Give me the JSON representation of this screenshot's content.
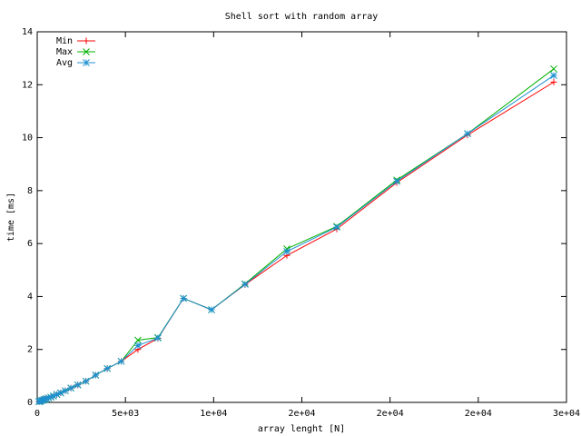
{
  "chart_data": {
    "type": "line",
    "title": "Shell sort with random array",
    "xlabel": "array lenght [N]",
    "ylabel": "time [ms]",
    "x": [
      100,
      150,
      220,
      300,
      370,
      450,
      530,
      640,
      770,
      920,
      1110,
      1330,
      1590,
      1910,
      2300,
      2760,
      3310,
      3970,
      4760,
      5710,
      6840,
      8290,
      9880,
      11780,
      14150,
      16980,
      20380,
      24390,
      29280
    ],
    "series": [
      {
        "name": "Min",
        "color": "#ff0000",
        "marker": "plus",
        "values": [
          0.03,
          0.04,
          0.06,
          0.08,
          0.1,
          0.12,
          0.14,
          0.17,
          0.2,
          0.24,
          0.3,
          0.36,
          0.44,
          0.54,
          0.66,
          0.8,
          1.03,
          1.28,
          1.55,
          2.0,
          2.42,
          3.93,
          3.5,
          4.45,
          5.55,
          6.55,
          8.3,
          10.1,
          12.1
        ]
      },
      {
        "name": "Max",
        "color": "#00b000",
        "marker": "cross",
        "values": [
          0.03,
          0.04,
          0.06,
          0.08,
          0.1,
          0.12,
          0.14,
          0.17,
          0.2,
          0.24,
          0.3,
          0.36,
          0.44,
          0.54,
          0.66,
          0.8,
          1.03,
          1.28,
          1.55,
          2.35,
          2.45,
          3.93,
          3.5,
          4.48,
          5.8,
          6.65,
          8.4,
          10.15,
          12.6
        ]
      },
      {
        "name": "Avg",
        "color": "#1e90d0",
        "marker": "star",
        "values": [
          0.03,
          0.04,
          0.06,
          0.08,
          0.1,
          0.12,
          0.14,
          0.17,
          0.2,
          0.24,
          0.3,
          0.36,
          0.44,
          0.54,
          0.66,
          0.8,
          1.03,
          1.28,
          1.55,
          2.15,
          2.43,
          3.93,
          3.5,
          4.46,
          5.7,
          6.62,
          8.35,
          10.15,
          12.35
        ]
      }
    ],
    "xlim": [
      0,
      30000
    ],
    "xticks": [
      0,
      {
        "value": 5000,
        "label": "5e+03"
      },
      {
        "value": 10000,
        "label": "1e+04"
      },
      {
        "value": 15000,
        "label": "2e+04"
      },
      {
        "value": 20000,
        "label": "2e+04"
      },
      {
        "value": 25000,
        "label": "2e+04"
      },
      {
        "value": 30000,
        "label": "3e+04"
      }
    ],
    "ylim": [
      0,
      14
    ],
    "yticks": [
      0,
      2,
      4,
      6,
      8,
      10,
      12,
      14
    ],
    "grid": false,
    "legend": "top-left"
  }
}
